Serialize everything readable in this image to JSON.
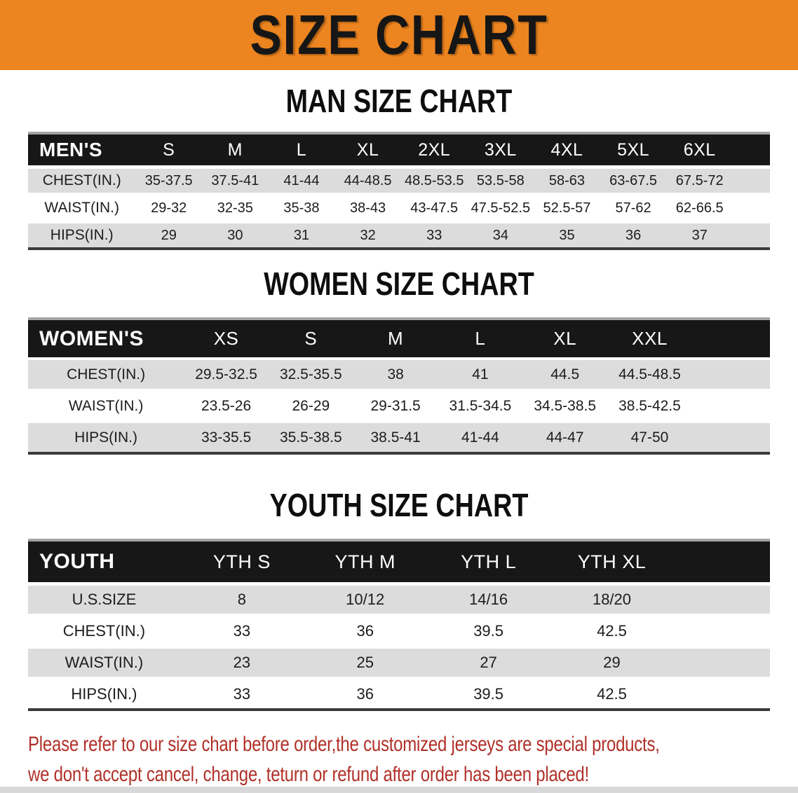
{
  "banner": {
    "title": "SIZE CHART",
    "background_color": "#EC8420",
    "title_color": "#161616"
  },
  "sections": [
    {
      "id": "men",
      "heading": "MAN SIZE CHART",
      "table": {
        "header_label": "MEN'S",
        "columns": [
          "S",
          "M",
          "L",
          "XL",
          "2XL",
          "3XL",
          "4XL",
          "5XL",
          "6XL"
        ],
        "rows": [
          {
            "label": "CHEST(IN.)",
            "values": [
              "35-37.5",
              "37.5-41",
              "41-44",
              "44-48.5",
              "48.5-53.5",
              "53.5-58",
              "58-63",
              "63-67.5",
              "67.5-72"
            ]
          },
          {
            "label": "WAIST(IN.)",
            "values": [
              "29-32",
              "32-35",
              "35-38",
              "38-43",
              "43-47.5",
              "47.5-52.5",
              "52.5-57",
              "57-62",
              "62-66.5"
            ]
          },
          {
            "label": "HIPS(IN.)",
            "values": [
              "29",
              "30",
              "31",
              "32",
              "33",
              "34",
              "35",
              "36",
              "37"
            ]
          }
        ]
      }
    },
    {
      "id": "women",
      "heading": "WOMEN SIZE CHART",
      "table": {
        "header_label": "WOMEN'S",
        "columns": [
          "XS",
          "S",
          "M",
          "L",
          "XL",
          "XXL"
        ],
        "rows": [
          {
            "label": "CHEST(IN.)",
            "values": [
              "29.5-32.5",
              "32.5-35.5",
              "38",
              "41",
              "44.5",
              "44.5-48.5"
            ]
          },
          {
            "label": "WAIST(IN.)",
            "values": [
              "23.5-26",
              "26-29",
              "29-31.5",
              "31.5-34.5",
              "34.5-38.5",
              "38.5-42.5"
            ]
          },
          {
            "label": "HIPS(IN.)",
            "values": [
              "33-35.5",
              "35.5-38.5",
              "38.5-41",
              "41-44",
              "44-47",
              "47-50"
            ]
          }
        ]
      }
    },
    {
      "id": "youth",
      "heading": "YOUTH SIZE CHART",
      "table": {
        "header_label": "YOUTH",
        "columns": [
          "YTH S",
          "YTH M",
          "YTH L",
          "YTH XL"
        ],
        "rows": [
          {
            "label": "U.S.SIZE",
            "values": [
              "8",
              "10/12",
              "14/16",
              "18/20"
            ]
          },
          {
            "label": "CHEST(IN.)",
            "values": [
              "33",
              "36",
              "39.5",
              "42.5"
            ]
          },
          {
            "label": "WAIST(IN.)",
            "values": [
              "23",
              "25",
              "27",
              "29"
            ]
          },
          {
            "label": "HIPS(IN.)",
            "values": [
              "33",
              "36",
              "39.5",
              "42.5"
            ]
          }
        ]
      }
    }
  ],
  "footer": {
    "lines": [
      "Please refer to our size chart before order,the customized jerseys are special products,",
      "we don't accept cancel, change, teturn or refund after order has been placed!"
    ],
    "text_color": "#B03028"
  },
  "colors": {
    "header_bar": "#171717",
    "row_shaded": "#DCDCDC",
    "row_plain": "#FFFFFF",
    "bottom_bar": "#3A3A3A"
  }
}
